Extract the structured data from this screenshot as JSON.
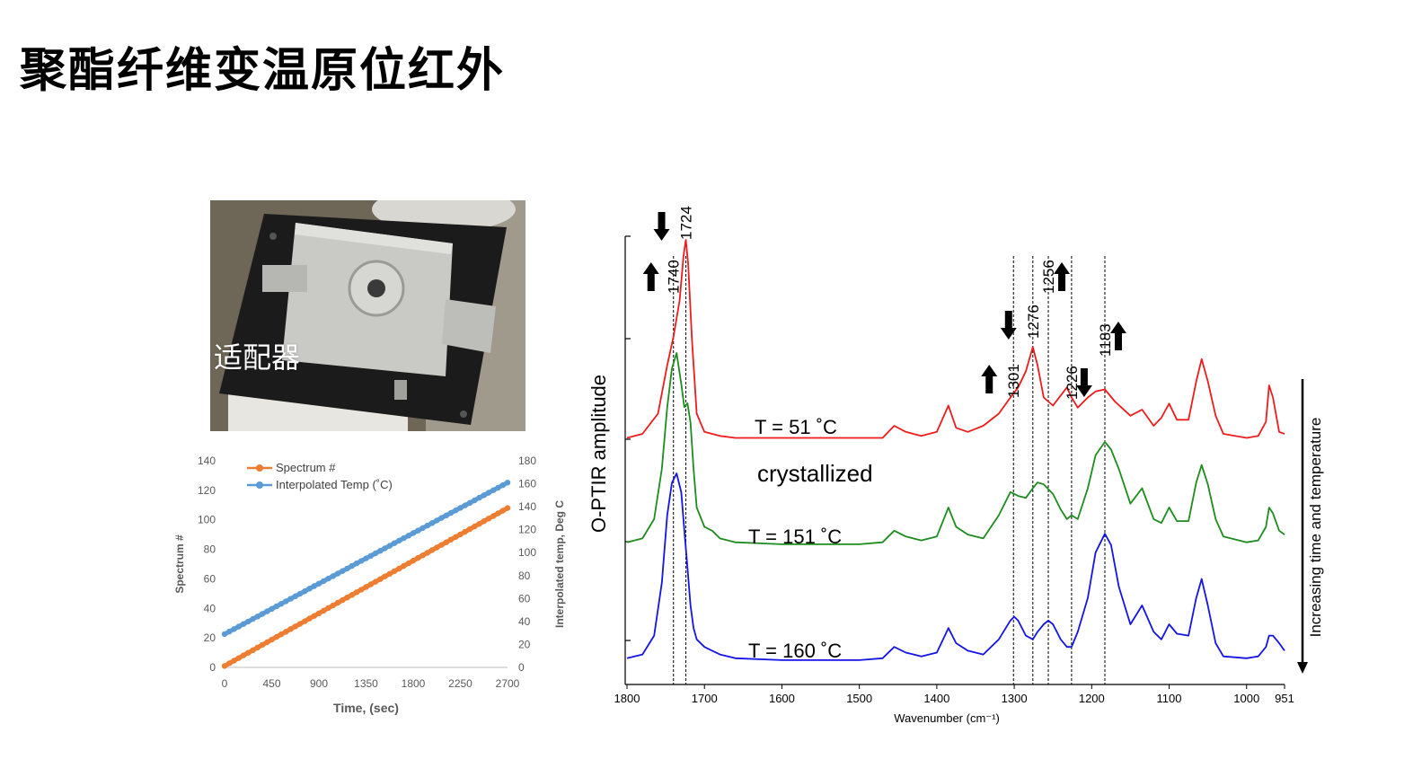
{
  "slide": {
    "title": "聚酯纤维变温原位红外"
  },
  "photo": {
    "label": "适配器"
  },
  "chart_data": [
    {
      "type": "line",
      "xlabel": "Time, (sec)",
      "ylabel": "Spectrum #",
      "y2label": "Interpolated temp, Deg C",
      "xlim": [
        0,
        2700
      ],
      "ylim": [
        0,
        140
      ],
      "y2lim": [
        0,
        180
      ],
      "x_ticks": [
        "0",
        "450",
        "900",
        "1350",
        "1800",
        "2250",
        "2700"
      ],
      "y_ticks": [
        "0",
        "20",
        "40",
        "60",
        "80",
        "100",
        "120",
        "140"
      ],
      "y2_ticks": [
        "0",
        "20",
        "40",
        "60",
        "80",
        "100",
        "120",
        "140",
        "160",
        "180"
      ],
      "legend_position": "top-left",
      "series": [
        {
          "name": "Spectrum #",
          "axis": "left",
          "color": "#ed7d31",
          "x": [
            0,
            2700
          ],
          "y": [
            1,
            108
          ]
        },
        {
          "name": "Interpolated Temp (˚C)",
          "axis": "right",
          "color": "#5b9bd5",
          "x": [
            0,
            2700
          ],
          "y": [
            29,
            161
          ]
        }
      ]
    },
    {
      "type": "line",
      "xlabel": "Wavenumber (cm⁻¹)",
      "ylabel": "O-PTIR amplitude",
      "side_label": "Increasing time and temperature",
      "xlim": [
        1800,
        951
      ],
      "x_reversed": true,
      "x_ticks": [
        "1800",
        "1700",
        "1600",
        "1500",
        "1400",
        "1300",
        "1200",
        "1100",
        "1000",
        "951"
      ],
      "annotation": "crystallized",
      "series": [
        {
          "name": "T = 51 ˚C",
          "color": "#ee1c1c",
          "x": [
            1800,
            1780,
            1760,
            1748,
            1740,
            1732,
            1727,
            1724,
            1721,
            1716,
            1710,
            1700,
            1690,
            1680,
            1660,
            1600,
            1500,
            1470,
            1455,
            1440,
            1420,
            1400,
            1385,
            1375,
            1360,
            1340,
            1320,
            1305,
            1295,
            1285,
            1276,
            1270,
            1262,
            1250,
            1240,
            1232,
            1226,
            1218,
            1205,
            1195,
            1183,
            1170,
            1150,
            1135,
            1120,
            1110,
            1100,
            1090,
            1075,
            1065,
            1058,
            1050,
            1040,
            1030,
            1000,
            985,
            975,
            971,
            966,
            958,
            951
          ],
          "y": [
            0.02,
            0.04,
            0.14,
            0.38,
            0.52,
            0.7,
            0.92,
            1.0,
            0.88,
            0.5,
            0.14,
            0.05,
            0.04,
            0.03,
            0.02,
            0.02,
            0.02,
            0.02,
            0.08,
            0.05,
            0.03,
            0.05,
            0.18,
            0.07,
            0.05,
            0.08,
            0.14,
            0.22,
            0.27,
            0.35,
            0.47,
            0.38,
            0.22,
            0.18,
            0.23,
            0.27,
            0.22,
            0.17,
            0.22,
            0.25,
            0.26,
            0.2,
            0.13,
            0.16,
            0.08,
            0.12,
            0.19,
            0.11,
            0.11,
            0.3,
            0.41,
            0.3,
            0.13,
            0.04,
            0.02,
            0.03,
            0.1,
            0.28,
            0.22,
            0.05,
            0.04
          ]
        },
        {
          "name": "T = 151 ˚C",
          "color": "#1e8c1e",
          "x": [
            1800,
            1780,
            1765,
            1755,
            1748,
            1742,
            1736,
            1730,
            1726,
            1722,
            1718,
            1714,
            1710,
            1700,
            1690,
            1680,
            1660,
            1600,
            1500,
            1470,
            1455,
            1440,
            1420,
            1400,
            1385,
            1375,
            1360,
            1340,
            1320,
            1305,
            1295,
            1285,
            1276,
            1270,
            1262,
            1250,
            1240,
            1232,
            1226,
            1218,
            1205,
            1195,
            1183,
            1175,
            1165,
            1150,
            1135,
            1120,
            1110,
            1100,
            1090,
            1075,
            1065,
            1058,
            1050,
            1040,
            1030,
            1000,
            985,
            975,
            971,
            966,
            958,
            951
          ],
          "y": [
            0.02,
            0.04,
            0.14,
            0.4,
            0.72,
            0.92,
            1.0,
            0.84,
            0.72,
            0.74,
            0.64,
            0.4,
            0.2,
            0.1,
            0.08,
            0.04,
            0.02,
            0.01,
            0.01,
            0.02,
            0.08,
            0.05,
            0.03,
            0.05,
            0.2,
            0.1,
            0.06,
            0.04,
            0.16,
            0.28,
            0.26,
            0.25,
            0.3,
            0.33,
            0.32,
            0.27,
            0.19,
            0.14,
            0.16,
            0.14,
            0.3,
            0.47,
            0.54,
            0.5,
            0.4,
            0.22,
            0.3,
            0.14,
            0.12,
            0.2,
            0.13,
            0.13,
            0.33,
            0.42,
            0.32,
            0.14,
            0.05,
            0.02,
            0.03,
            0.1,
            0.2,
            0.17,
            0.08,
            0.06
          ]
        },
        {
          "name": "T = 160 ˚C",
          "color": "#1414e6",
          "x": [
            1800,
            1780,
            1765,
            1755,
            1748,
            1742,
            1736,
            1730,
            1726,
            1722,
            1718,
            1714,
            1710,
            1700,
            1690,
            1680,
            1660,
            1600,
            1500,
            1470,
            1455,
            1440,
            1420,
            1400,
            1385,
            1375,
            1360,
            1340,
            1320,
            1305,
            1300,
            1295,
            1285,
            1276,
            1270,
            1262,
            1256,
            1250,
            1240,
            1232,
            1226,
            1218,
            1205,
            1195,
            1183,
            1175,
            1165,
            1150,
            1135,
            1120,
            1110,
            1100,
            1090,
            1075,
            1065,
            1058,
            1050,
            1040,
            1030,
            1000,
            985,
            975,
            971,
            966,
            958,
            951
          ],
          "y": [
            0.02,
            0.04,
            0.14,
            0.42,
            0.78,
            0.95,
            1.0,
            0.9,
            0.7,
            0.5,
            0.3,
            0.18,
            0.12,
            0.08,
            0.06,
            0.04,
            0.02,
            0.01,
            0.01,
            0.02,
            0.08,
            0.05,
            0.03,
            0.05,
            0.18,
            0.1,
            0.06,
            0.04,
            0.12,
            0.22,
            0.24,
            0.22,
            0.14,
            0.12,
            0.16,
            0.2,
            0.22,
            0.2,
            0.12,
            0.08,
            0.08,
            0.16,
            0.34,
            0.58,
            0.68,
            0.62,
            0.4,
            0.2,
            0.3,
            0.16,
            0.12,
            0.2,
            0.15,
            0.14,
            0.34,
            0.44,
            0.3,
            0.1,
            0.03,
            0.02,
            0.03,
            0.08,
            0.14,
            0.14,
            0.1,
            0.06
          ]
        }
      ],
      "peaks": [
        {
          "label": "1740",
          "x": 1740,
          "arrow": "up"
        },
        {
          "label": "1724",
          "x": 1724,
          "arrow": "down"
        },
        {
          "label": "1301",
          "x": 1301,
          "arrow": "up"
        },
        {
          "label": "1276",
          "x": 1276,
          "arrow": "down"
        },
        {
          "label": "1256",
          "x": 1256,
          "arrow": "up"
        },
        {
          "label": "1226",
          "x": 1226,
          "arrow": "down"
        },
        {
          "label": "1183",
          "x": 1183,
          "arrow": "up"
        }
      ]
    }
  ]
}
